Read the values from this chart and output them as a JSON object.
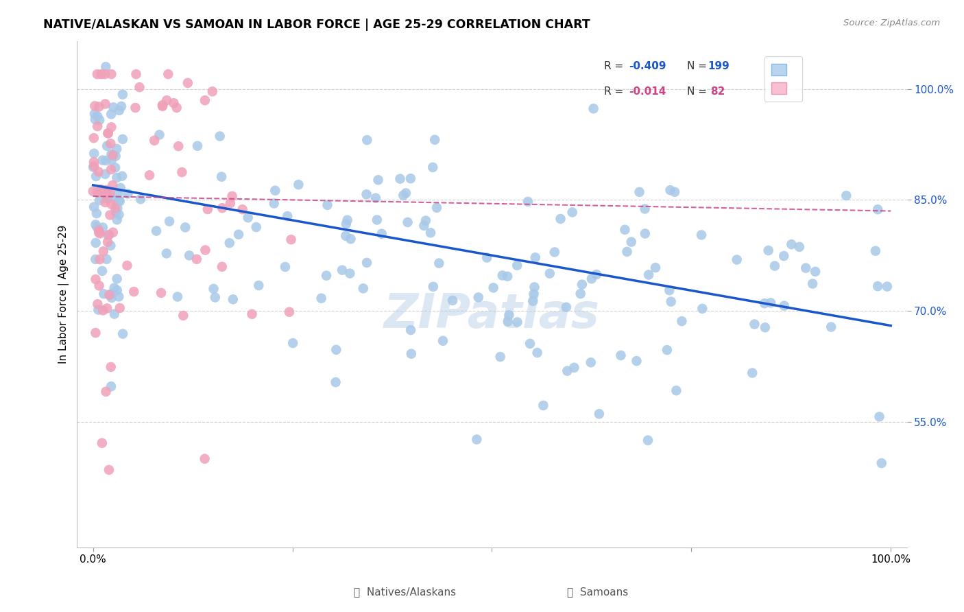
{
  "title": "NATIVE/ALASKAN VS SAMOAN IN LABOR FORCE | AGE 25-29 CORRELATION CHART",
  "source": "Source: ZipAtlas.com",
  "xlabel": "",
  "ylabel": "In Labor Force | Age 25-29",
  "xlim": [
    -0.02,
    1.02
  ],
  "ylim": [
    0.38,
    1.065
  ],
  "yticks": [
    0.55,
    0.7,
    0.85,
    1.0
  ],
  "ytick_labels": [
    "55.0%",
    "70.0%",
    "85.0%",
    "100.0%"
  ],
  "xticks": [
    0.0,
    0.25,
    0.5,
    0.75,
    1.0
  ],
  "xtick_labels": [
    "0.0%",
    "",
    "",
    "",
    "100.0%"
  ],
  "legend_blue_label_r": "R = -0.409",
  "legend_blue_label_n": "N = 199",
  "legend_pink_label_r": "R = -0.014",
  "legend_pink_label_n": "N =  82",
  "blue_scatter_color": "#a8c8e8",
  "pink_scatter_color": "#f0a0b8",
  "blue_line_color": "#1a56cc",
  "pink_line_color": "#cc4488",
  "blue_slope": -0.19,
  "blue_intercept": 0.87,
  "pink_slope": -0.02,
  "pink_intercept": 0.855,
  "watermark": "ZIPatlas",
  "background_color": "#ffffff",
  "grid_color": "#cccccc",
  "blue_N": 199,
  "pink_N": 82
}
